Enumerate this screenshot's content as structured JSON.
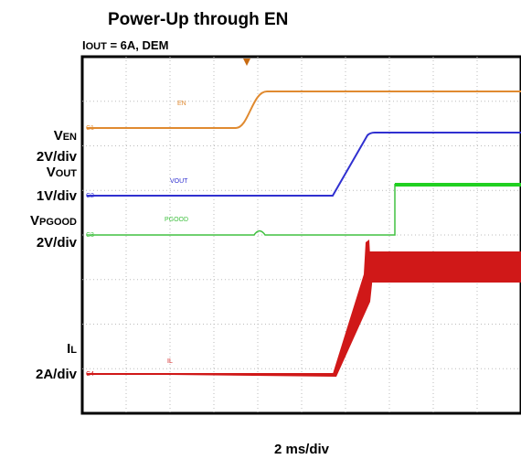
{
  "header": {
    "title": "Power-Up through EN",
    "subtitle": {
      "main": "I",
      "sub": "OUT",
      "rest": " = 6A, DEM"
    }
  },
  "channels": [
    {
      "name": {
        "main": "V",
        "sub": "EN"
      },
      "scale": "2V/div",
      "trace_label": "EN",
      "marker": "C1"
    },
    {
      "name": {
        "main": "V",
        "sub": "OUT"
      },
      "scale": "1V/div",
      "trace_label": "VOUT",
      "marker": "C2"
    },
    {
      "name": {
        "main": "V",
        "sub": "PGOOD"
      },
      "scale": "2V/div",
      "trace_label": "PGOOD",
      "marker": "C3"
    },
    {
      "name": {
        "main": "I",
        "sub": "L"
      },
      "scale": "2A/div",
      "trace_label": "IL",
      "marker": "C4"
    }
  ],
  "footer": {
    "timebase": "2 ms/div"
  }
}
